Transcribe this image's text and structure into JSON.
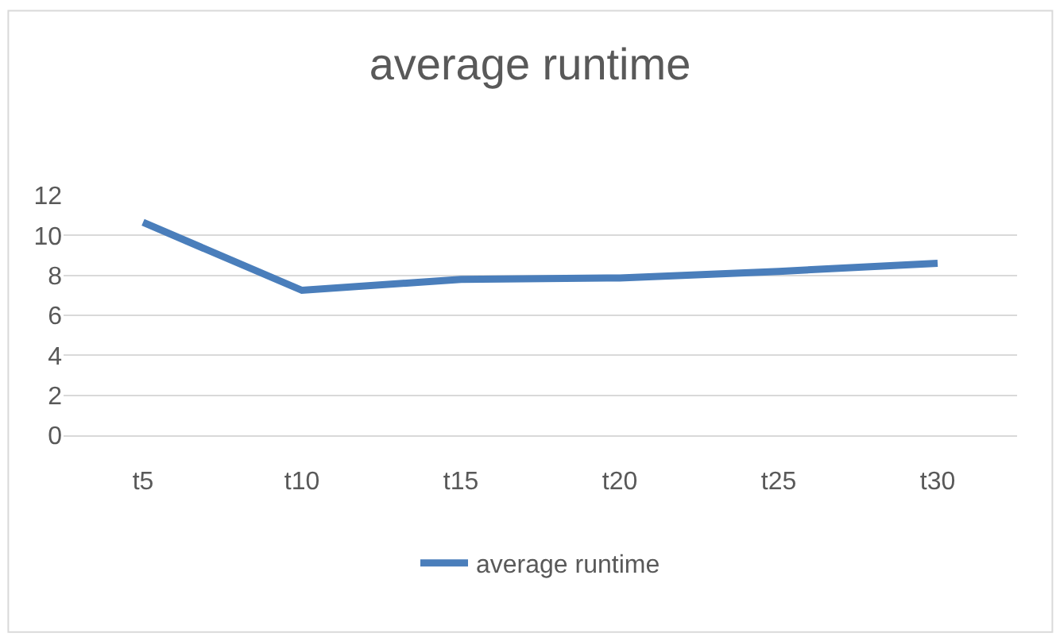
{
  "chart_data": {
    "type": "line",
    "title": "average runtime",
    "categories": [
      "t5",
      "t10",
      "t15",
      "t20",
      "t25",
      "t30"
    ],
    "series": [
      {
        "name": "average runtime",
        "color": "#4a7ebb",
        "values": [
          10.65,
          7.25,
          7.8,
          7.87,
          8.2,
          8.6
        ]
      }
    ],
    "ylim": [
      0,
      12
    ],
    "yticks": [
      0,
      2,
      4,
      6,
      8,
      10,
      12
    ],
    "grid": "y",
    "legend": "bottom",
    "marker": "none",
    "line_style": "solid"
  }
}
